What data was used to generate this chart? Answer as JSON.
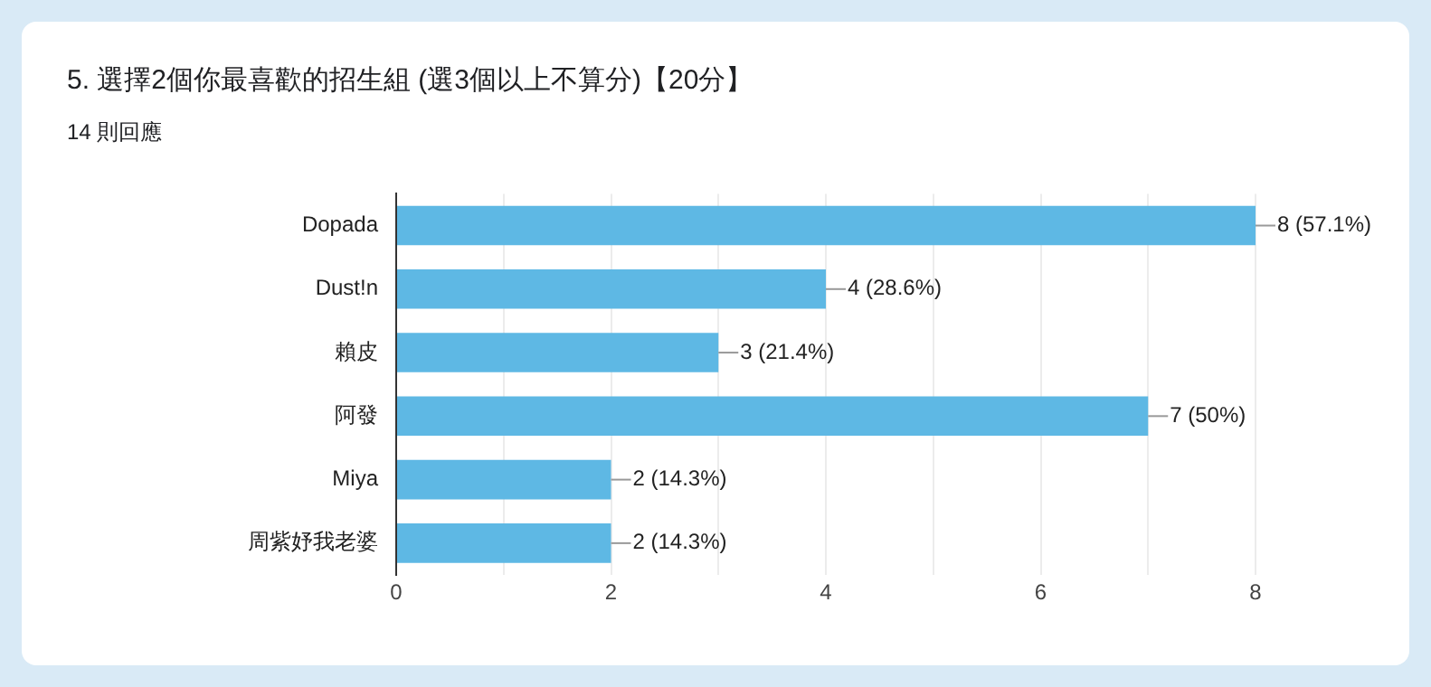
{
  "chart_data": {
    "type": "bar",
    "orientation": "horizontal",
    "title": "5. 選擇2個你最喜歡的招生組 (選3個以上不算分)【20分】",
    "subtitle": "14 則回應",
    "categories": [
      "Dopada",
      "Dust!n",
      "賴皮",
      "阿發",
      "Miya",
      "周紫妤我老婆"
    ],
    "values": [
      8,
      4,
      3,
      7,
      2,
      2
    ],
    "value_labels": [
      "8 (57.1%)",
      "4 (28.6%)",
      "3 (21.4%)",
      "7 (50%)",
      "2 (14.3%)",
      "2 (14.3%)"
    ],
    "color": "#5eb8e4",
    "xlim": [
      0,
      8
    ],
    "xticks": [
      0,
      {
        "value": 1,
        "label": null
      },
      2,
      {
        "value": 3,
        "label": null
      },
      4,
      {
        "value": 5,
        "label": null
      },
      6,
      {
        "value": 7,
        "label": null
      },
      8
    ],
    "grid": "x",
    "legend": false
  }
}
